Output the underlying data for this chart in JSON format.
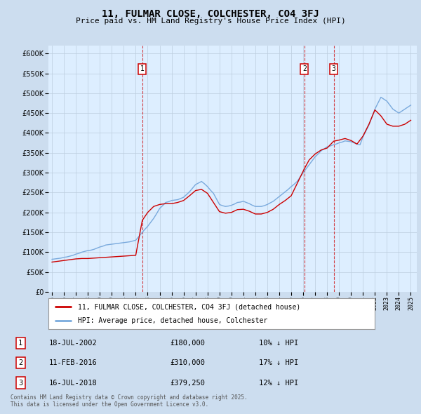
{
  "title": "11, FULMAR CLOSE, COLCHESTER, CO4 3FJ",
  "subtitle": "Price paid vs. HM Land Registry's House Price Index (HPI)",
  "hpi_color": "#7aaadd",
  "price_color": "#cc0000",
  "background_color": "#ccddef",
  "plot_bg_color": "#ddeeff",
  "ylim": [
    0,
    620000
  ],
  "yticks": [
    0,
    50000,
    100000,
    150000,
    200000,
    250000,
    300000,
    350000,
    400000,
    450000,
    500000,
    550000,
    600000
  ],
  "transactions": [
    {
      "label": "1",
      "date": "18-JUL-2002",
      "price": 180000,
      "hpi_pct": "10% ↓ HPI",
      "x": 2002.55
    },
    {
      "label": "2",
      "date": "11-FEB-2016",
      "price": 310000,
      "hpi_pct": "17% ↓ HPI",
      "x": 2016.1
    },
    {
      "label": "3",
      "date": "16-JUL-2018",
      "price": 379250,
      "hpi_pct": "12% ↓ HPI",
      "x": 2018.55
    }
  ],
  "legend_label_price": "11, FULMAR CLOSE, COLCHESTER, CO4 3FJ (detached house)",
  "legend_label_hpi": "HPI: Average price, detached house, Colchester",
  "footer": "Contains HM Land Registry data © Crown copyright and database right 2025.\nThis data is licensed under the Open Government Licence v3.0.",
  "hpi_years": [
    1995.0,
    1995.25,
    1995.5,
    1995.75,
    1996.0,
    1996.25,
    1996.5,
    1996.75,
    1997.0,
    1997.25,
    1997.5,
    1997.75,
    1998.0,
    1998.25,
    1998.5,
    1998.75,
    1999.0,
    1999.25,
    1999.5,
    1999.75,
    2000.0,
    2000.25,
    2000.5,
    2000.75,
    2001.0,
    2001.25,
    2001.5,
    2001.75,
    2002.0,
    2002.25,
    2002.5,
    2002.75,
    2003.0,
    2003.25,
    2003.5,
    2003.75,
    2004.0,
    2004.25,
    2004.5,
    2004.75,
    2005.0,
    2005.25,
    2005.5,
    2005.75,
    2006.0,
    2006.25,
    2006.5,
    2006.75,
    2007.0,
    2007.25,
    2007.5,
    2007.75,
    2008.0,
    2008.25,
    2008.5,
    2008.75,
    2009.0,
    2009.25,
    2009.5,
    2009.75,
    2010.0,
    2010.25,
    2010.5,
    2010.75,
    2011.0,
    2011.25,
    2011.5,
    2011.75,
    2012.0,
    2012.25,
    2012.5,
    2012.75,
    2013.0,
    2013.25,
    2013.5,
    2013.75,
    2014.0,
    2014.25,
    2014.5,
    2014.75,
    2015.0,
    2015.25,
    2015.5,
    2015.75,
    2016.0,
    2016.25,
    2016.5,
    2016.75,
    2017.0,
    2017.25,
    2017.5,
    2017.75,
    2018.0,
    2018.25,
    2018.5,
    2018.75,
    2019.0,
    2019.25,
    2019.5,
    2019.75,
    2020.0,
    2020.25,
    2020.5,
    2020.75,
    2021.0,
    2021.25,
    2021.5,
    2021.75,
    2022.0,
    2022.25,
    2022.5,
    2022.75,
    2023.0,
    2023.25,
    2023.5,
    2023.75,
    2024.0,
    2024.25,
    2024.5,
    2024.75,
    2025.0
  ],
  "hpi_values": [
    82000,
    83000,
    84000,
    85000,
    87000,
    88000,
    90000,
    92000,
    95000,
    97000,
    100000,
    102000,
    104000,
    105000,
    107000,
    110000,
    113000,
    115000,
    118000,
    119000,
    120000,
    121000,
    122000,
    123000,
    124000,
    125000,
    126000,
    128000,
    130000,
    139000,
    148000,
    157000,
    165000,
    175000,
    185000,
    197000,
    210000,
    217000,
    225000,
    227000,
    230000,
    231000,
    232000,
    235000,
    238000,
    245000,
    252000,
    261000,
    270000,
    274000,
    278000,
    272000,
    265000,
    256000,
    248000,
    234000,
    220000,
    217000,
    215000,
    216000,
    218000,
    221000,
    225000,
    226000,
    228000,
    225000,
    222000,
    218000,
    215000,
    215000,
    215000,
    217000,
    220000,
    224000,
    228000,
    234000,
    240000,
    246000,
    252000,
    258000,
    265000,
    271000,
    278000,
    289000,
    300000,
    310000,
    320000,
    330000,
    340000,
    347000,
    355000,
    360000,
    365000,
    367000,
    370000,
    372000,
    375000,
    377000,
    380000,
    379000,
    378000,
    375000,
    372000,
    370000,
    390000,
    405000,
    420000,
    440000,
    460000,
    475000,
    490000,
    485000,
    480000,
    470000,
    460000,
    455000,
    450000,
    455000,
    460000,
    465000,
    470000
  ],
  "price_years": [
    1995.0,
    1995.5,
    1996.0,
    1996.5,
    1997.0,
    1997.5,
    1998.0,
    1998.5,
    1999.0,
    1999.5,
    2000.0,
    2000.5,
    2001.0,
    2001.5,
    2002.0,
    2002.55,
    2003.0,
    2003.5,
    2004.0,
    2004.5,
    2005.0,
    2005.5,
    2006.0,
    2006.5,
    2007.0,
    2007.5,
    2008.0,
    2008.5,
    2009.0,
    2009.5,
    2010.0,
    2010.5,
    2011.0,
    2011.5,
    2012.0,
    2012.5,
    2013.0,
    2013.5,
    2014.0,
    2014.5,
    2015.0,
    2016.1,
    2016.5,
    2017.0,
    2017.5,
    2018.0,
    2018.55,
    2019.0,
    2019.5,
    2020.0,
    2020.5,
    2021.0,
    2021.5,
    2022.0,
    2022.5,
    2023.0,
    2023.5,
    2024.0,
    2024.5,
    2025.0
  ],
  "price_values": [
    75000,
    77000,
    79000,
    81000,
    83000,
    84000,
    84000,
    85000,
    86000,
    87000,
    88000,
    89000,
    90000,
    91000,
    92000,
    180000,
    200000,
    215000,
    220000,
    222000,
    222000,
    225000,
    230000,
    242000,
    255000,
    258000,
    248000,
    225000,
    202000,
    198000,
    200000,
    207000,
    208000,
    203000,
    196000,
    196000,
    200000,
    208000,
    220000,
    230000,
    242000,
    310000,
    332000,
    347000,
    357000,
    362000,
    379250,
    382000,
    386000,
    381000,
    372000,
    392000,
    422000,
    458000,
    443000,
    422000,
    417000,
    417000,
    422000,
    432000
  ]
}
